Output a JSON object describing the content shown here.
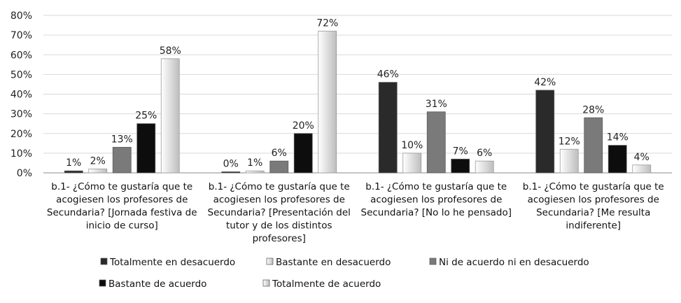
{
  "chart_data": {
    "type": "bar",
    "categories": [
      [
        "b.1- ¿Cómo te gustaría que te",
        "acogiesen los profesores de",
        "Secundaria? [Jornada festiva de",
        "inicio de curso]"
      ],
      [
        "b.1- ¿Cómo te gustaría que te",
        "acogiesen los profesores de",
        "Secundaria? [Presentación del",
        "tutor y de los distintos",
        "profesores]"
      ],
      [
        "b.1- ¿Cómo te gustaría que te",
        "acogiesen los profesores de",
        "Secundaria? [No lo he pensado]"
      ],
      [
        "b.1- ¿Cómo te gustaría que te",
        "acogiesen los profesores de",
        "Secundaria? [Me resulta",
        "indiferente]"
      ]
    ],
    "series": [
      {
        "name": "Totalmente en desacuerdo",
        "values": [
          1,
          0,
          46,
          42
        ],
        "labels": [
          "1%",
          "0%",
          "46%",
          "42%"
        ],
        "color": "#2a2a2a"
      },
      {
        "name": "Bastante en desacuerdo",
        "values": [
          2,
          1,
          10,
          12
        ],
        "labels": [
          "2%",
          "1%",
          "10%",
          "12%"
        ],
        "color": "#d6d6d6"
      },
      {
        "name": "Ni de acuerdo ni en desacuerdo",
        "values": [
          13,
          6,
          31,
          28
        ],
        "labels": [
          "13%",
          "6%",
          "31%",
          "28%"
        ],
        "color": "#7a7a7a"
      },
      {
        "name": "Bastante de acuerdo",
        "values": [
          25,
          20,
          7,
          14
        ],
        "labels": [
          "25%",
          "20%",
          "7%",
          "14%"
        ],
        "color": "#0d0d0d"
      },
      {
        "name": "Totalmente de acuerdo",
        "values": [
          58,
          72,
          6,
          4
        ],
        "labels": [
          "58%",
          "72%",
          "6%",
          "4%"
        ],
        "color": "#ececec"
      }
    ],
    "ylim": [
      0,
      80
    ],
    "yticks": [
      "0%",
      "10%",
      "20%",
      "30%",
      "40%",
      "50%",
      "60%",
      "70%",
      "80%"
    ],
    "grid": true,
    "legend_position": "bottom",
    "legend_rows": [
      [
        "Totalmente en desacuerdo",
        "Bastante en desacuerdo",
        "Ni de acuerdo ni en desacuerdo"
      ],
      [
        "Bastante de acuerdo",
        "Totalmente de acuerdo"
      ]
    ]
  }
}
